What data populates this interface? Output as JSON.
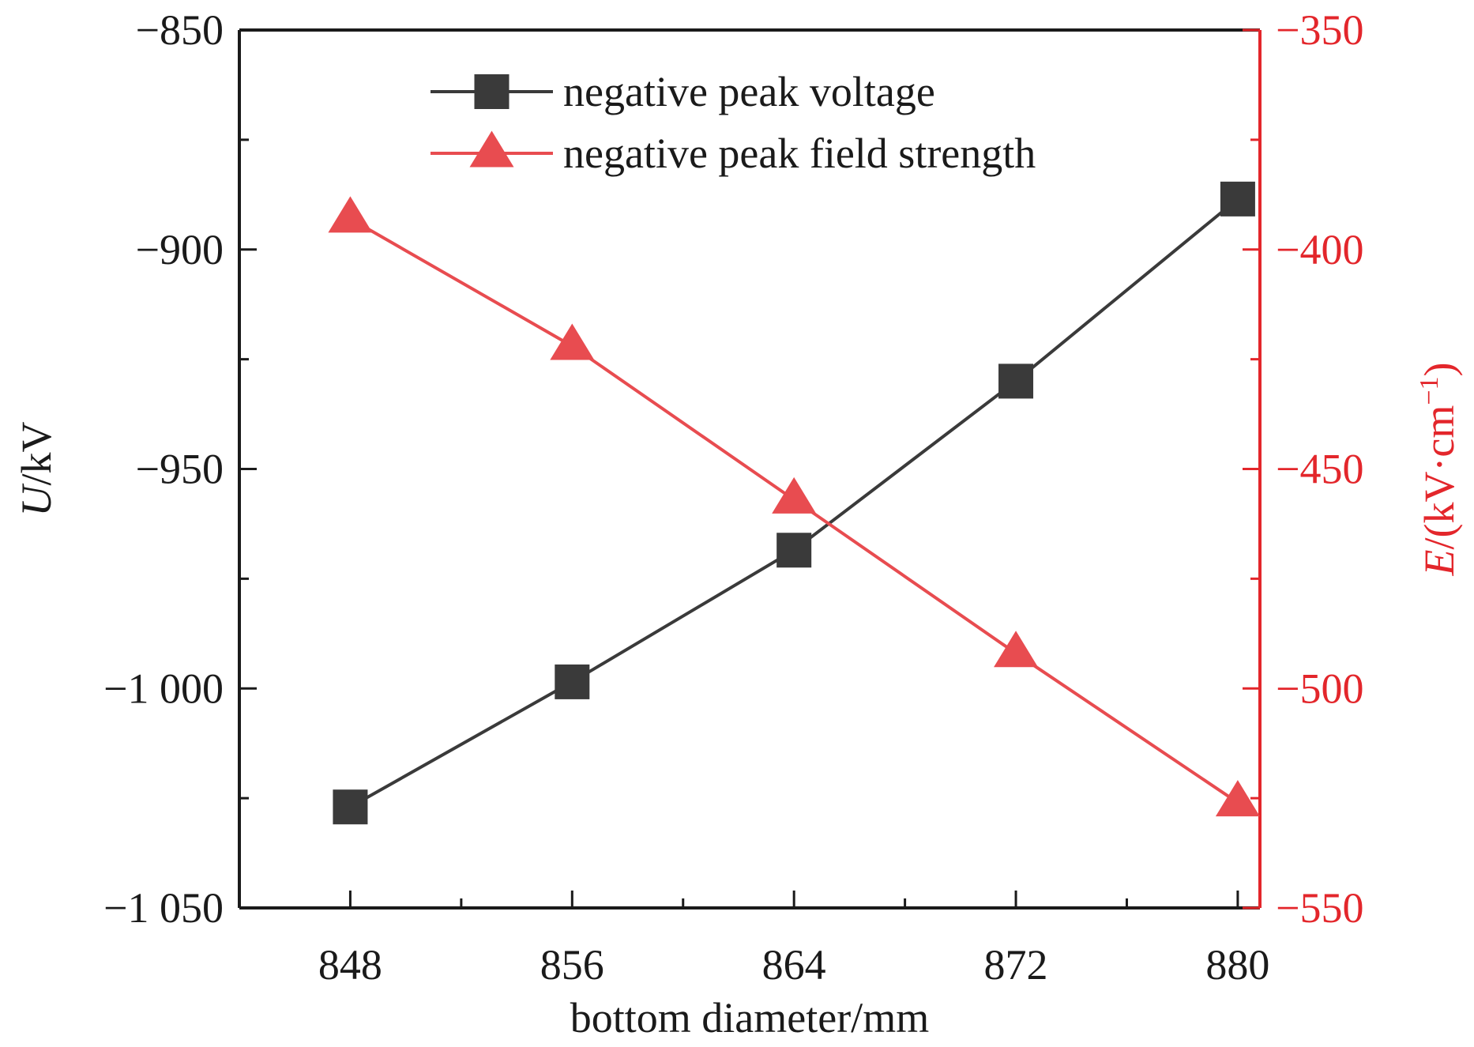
{
  "chart_data": {
    "type": "line",
    "x": [
      848,
      856,
      864,
      872,
      880
    ],
    "x_ticks": [
      848,
      856,
      864,
      872,
      880
    ],
    "x_tick_labels": [
      "848",
      "856",
      "864",
      "872",
      "880"
    ],
    "xlim": [
      844,
      880.8
    ],
    "xlabel": "bottom diameter/mm",
    "y_left": {
      "label_italic": "U",
      "label_rest": "/kV",
      "lim": [
        -1050,
        -850
      ],
      "ticks": [
        -850,
        -900,
        -950,
        -1000,
        -1050
      ],
      "tick_labels": [
        "−850",
        "−900",
        "−950",
        "−1 000",
        "−1 050"
      ],
      "color": "#1a1a1a"
    },
    "y_right": {
      "label_italic": "E",
      "label_rest": "/(kV·cm",
      "label_sup": "−1",
      "label_close": ")",
      "lim": [
        -550,
        -350
      ],
      "ticks": [
        -350,
        -400,
        -450,
        -500,
        -550
      ],
      "tick_labels": [
        "−350",
        "−400",
        "−450",
        "−500",
        "−550"
      ],
      "color": "#e3262b"
    },
    "series": [
      {
        "name": "negative peak voltage",
        "axis": "left",
        "marker": "square",
        "color": "#3a3a3a",
        "line_color": "#3a3a3a",
        "values": [
          -1027,
          -998.5,
          -968.5,
          -930,
          -888.5
        ]
      },
      {
        "name": "negative peak field strength",
        "axis": "right",
        "marker": "triangle",
        "color": "#e84c50",
        "line_color": "#e84c50",
        "values": [
          -393,
          -422,
          -457,
          -492,
          -526
        ]
      }
    ],
    "legend": "top-center",
    "grid": false
  }
}
